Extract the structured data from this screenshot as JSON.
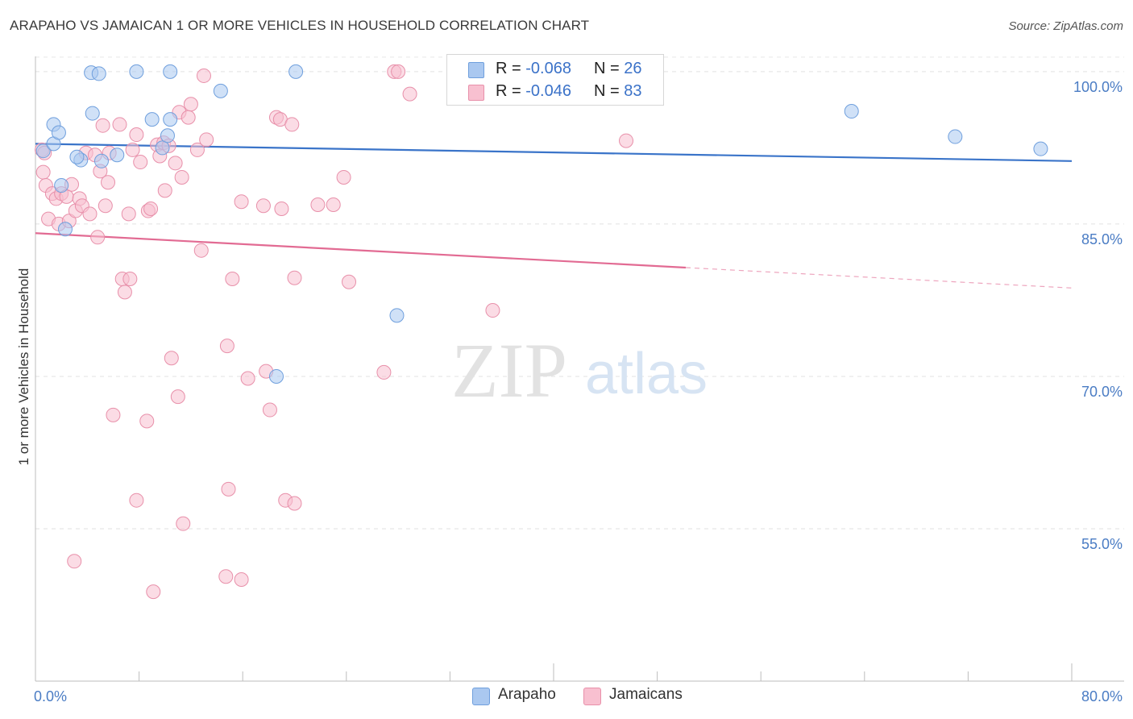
{
  "title": "ARAPAHO VS JAMAICAN 1 OR MORE VEHICLES IN HOUSEHOLD CORRELATION CHART",
  "source": "Source: ZipAtlas.com",
  "watermark": {
    "zip": "ZIP",
    "atlas": "atlas"
  },
  "legend": {
    "r_label": "R =",
    "n_label": "N =",
    "series": [
      {
        "name": "Arapaho",
        "r": "-0.068",
        "n": "26",
        "fill": "#aac8f0",
        "stroke": "#6f9fdd"
      },
      {
        "name": "Jamaicans",
        "r": "-0.046",
        "n": "83",
        "fill": "#f8c0d0",
        "stroke": "#e890aa"
      }
    ]
  },
  "chart_data": {
    "type": "scatter",
    "title": "ARAPAHO VS JAMAICAN 1 OR MORE VEHICLES IN HOUSEHOLD CORRELATION CHART",
    "xlabel": "",
    "ylabel": "1 or more Vehicles in Household",
    "xlim": [
      0,
      80
    ],
    "ylim": [
      40,
      101.5
    ],
    "x_tick_labels": [
      "0.0%",
      "80.0%"
    ],
    "y_ticks": [
      100,
      85,
      70,
      55
    ],
    "y_tick_labels": [
      "100.0%",
      "85.0%",
      "70.0%",
      "55.0%"
    ],
    "legend_position": "top-center",
    "series": [
      {
        "name": "Arapaho",
        "color": "#3a74c9",
        "trend": {
          "x0": 0,
          "y0": 92.9,
          "x1": 80,
          "y1": 91.2,
          "solid_until": 80
        },
        "points": [
          [
            0.6,
            92.2
          ],
          [
            1.4,
            92.9
          ],
          [
            1.4,
            94.8
          ],
          [
            1.8,
            94.0
          ],
          [
            2.0,
            88.8
          ],
          [
            2.3,
            84.5
          ],
          [
            3.5,
            91.3
          ],
          [
            4.3,
            99.9
          ],
          [
            4.4,
            95.9
          ],
          [
            4.9,
            99.8
          ],
          [
            5.1,
            91.2
          ],
          [
            6.3,
            91.8
          ],
          [
            7.8,
            100.0
          ],
          [
            9.0,
            95.3
          ],
          [
            9.8,
            92.5
          ],
          [
            10.2,
            93.7
          ],
          [
            10.4,
            95.3
          ],
          [
            10.4,
            100.0
          ],
          [
            14.3,
            98.1
          ],
          [
            18.6,
            70.0
          ],
          [
            20.1,
            100.0
          ],
          [
            27.9,
            76.0
          ],
          [
            63.0,
            96.1
          ],
          [
            71.0,
            93.6
          ],
          [
            77.6,
            92.4
          ],
          [
            3.2,
            91.6
          ]
        ]
      },
      {
        "name": "Jamaicans",
        "color": "#e26b93",
        "trend": {
          "x0": 0,
          "y0": 84.1,
          "x1": 80,
          "y1": 78.7,
          "solid_until": 50.2
        },
        "points": [
          [
            0.5,
            92.3
          ],
          [
            0.6,
            90.1
          ],
          [
            0.8,
            88.8
          ],
          [
            1.0,
            85.5
          ],
          [
            1.3,
            88.0
          ],
          [
            1.6,
            87.5
          ],
          [
            1.8,
            85.0
          ],
          [
            2.0,
            88.0
          ],
          [
            2.4,
            87.7
          ],
          [
            2.6,
            85.3
          ],
          [
            2.8,
            88.9
          ],
          [
            3.1,
            86.3
          ],
          [
            3.4,
            87.5
          ],
          [
            3.6,
            86.8
          ],
          [
            3.9,
            92.0
          ],
          [
            4.2,
            86.0
          ],
          [
            4.6,
            91.8
          ],
          [
            4.8,
            83.7
          ],
          [
            5.0,
            90.2
          ],
          [
            5.2,
            94.7
          ],
          [
            5.4,
            86.8
          ],
          [
            5.6,
            89.1
          ],
          [
            5.7,
            92.0
          ],
          [
            6.5,
            94.8
          ],
          [
            6.7,
            79.6
          ],
          [
            6.9,
            78.3
          ],
          [
            7.2,
            86.0
          ],
          [
            7.3,
            79.6
          ],
          [
            7.5,
            92.3
          ],
          [
            7.8,
            93.8
          ],
          [
            8.1,
            91.1
          ],
          [
            8.7,
            86.3
          ],
          [
            8.9,
            86.5
          ],
          [
            9.4,
            92.8
          ],
          [
            9.6,
            91.7
          ],
          [
            9.9,
            93.0
          ],
          [
            10.0,
            88.3
          ],
          [
            10.3,
            92.7
          ],
          [
            10.5,
            71.8
          ],
          [
            11.0,
            68.0
          ],
          [
            11.1,
            96.0
          ],
          [
            11.3,
            89.6
          ],
          [
            11.8,
            95.5
          ],
          [
            12.0,
            96.8
          ],
          [
            12.5,
            92.3
          ],
          [
            12.8,
            82.4
          ],
          [
            13.0,
            99.6
          ],
          [
            13.2,
            93.3
          ],
          [
            14.8,
            73.0
          ],
          [
            15.2,
            79.6
          ],
          [
            15.9,
            87.2
          ],
          [
            16.4,
            69.8
          ],
          [
            17.6,
            86.8
          ],
          [
            17.8,
            70.5
          ],
          [
            18.1,
            66.7
          ],
          [
            18.6,
            95.5
          ],
          [
            18.9,
            95.3
          ],
          [
            19.0,
            86.5
          ],
          [
            19.3,
            57.8
          ],
          [
            19.8,
            94.8
          ],
          [
            20.0,
            79.7
          ],
          [
            21.8,
            86.9
          ],
          [
            23.0,
            86.9
          ],
          [
            23.8,
            89.6
          ],
          [
            24.2,
            79.3
          ],
          [
            26.9,
            70.4
          ],
          [
            27.7,
            100.0
          ],
          [
            28.0,
            100.0
          ],
          [
            28.9,
            97.8
          ],
          [
            35.3,
            76.5
          ],
          [
            45.6,
            93.2
          ],
          [
            8.6,
            65.6
          ],
          [
            9.1,
            48.8
          ],
          [
            7.8,
            57.8
          ],
          [
            6.0,
            66.2
          ],
          [
            11.4,
            55.5
          ],
          [
            14.7,
            50.3
          ],
          [
            14.9,
            58.9
          ],
          [
            15.9,
            50.0
          ],
          [
            20.0,
            57.5
          ],
          [
            3.0,
            51.8
          ],
          [
            0.7,
            92.0
          ],
          [
            10.8,
            91.0
          ]
        ]
      }
    ]
  }
}
